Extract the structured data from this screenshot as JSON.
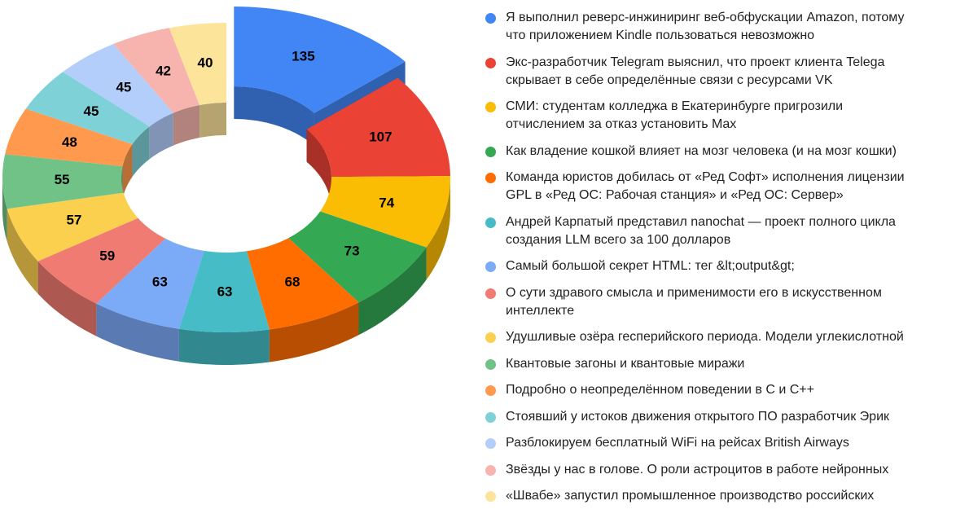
{
  "chart_data": {
    "type": "donut3d",
    "series": [
      {
        "name": "Я выполнил реверс-инжиниринг веб-обфускации Amazon, потому\nчто приложением Kindle пользоваться невозможно",
        "value": 135,
        "color": "#4285f4"
      },
      {
        "name": "Экс-разработчик Telegram выяснил, что проект клиента Telega\nскрывает в себе определённые связи с ресурсами VK",
        "value": 107,
        "color": "#ea4335"
      },
      {
        "name": "СМИ: студентам колледжа в Екатеринбурге пригрозили\nотчислением за отказ установить Max",
        "value": 74,
        "color": "#fbbc04"
      },
      {
        "name": "Как владение кошкой влияет на мозг человека (и на мозг кошки)",
        "value": 73,
        "color": "#34a853"
      },
      {
        "name": "Команда юристов добилась от «Ред Софт» исполнения лицензии\nGPL в «Ред ОС: Рабочая станция» и «Ред ОС: Сервер»",
        "value": 68,
        "color": "#ff6d01"
      },
      {
        "name": "Андрей Карпатый представил nanochat — проект полного цикла\nсоздания LLM всего за 100 долларов",
        "value": 63,
        "color": "#46bdc6"
      },
      {
        "name": "Самый большой секрет HTML: тег &lt;output&gt;",
        "value": 63,
        "color": "#7baaf7"
      },
      {
        "name": "О сути здравого смысла и применимости его в искусственном\nинтеллекте",
        "value": 59,
        "color": "#f07b72"
      },
      {
        "name": "Удушливые озёра гесперийского периода. Модели углекислотной",
        "value": 57,
        "color": "#fcd04f"
      },
      {
        "name": "Квантовые загоны и квантовые миражи",
        "value": 55,
        "color": "#71c287"
      },
      {
        "name": "Подробно о неопределённом поведении в C и C++",
        "value": 48,
        "color": "#ff994d"
      },
      {
        "name": "Стоявший у истоков движения открытого ПО разработчик Эрик",
        "value": 45,
        "color": "#7ed1d7"
      },
      {
        "name": "Разблокируем бесплатный WiFi на рейсах British Airways",
        "value": 45,
        "color": "#b3cefb"
      },
      {
        "name": "Звёзды у нас в голове. О роли астроцитов в работе нейронных",
        "value": 42,
        "color": "#f7b4ae"
      },
      {
        "name": "«Швабе» запустил промышленное производство российских",
        "value": 40,
        "color": "#fde49b"
      }
    ],
    "exploded": 0,
    "legend": "right"
  }
}
